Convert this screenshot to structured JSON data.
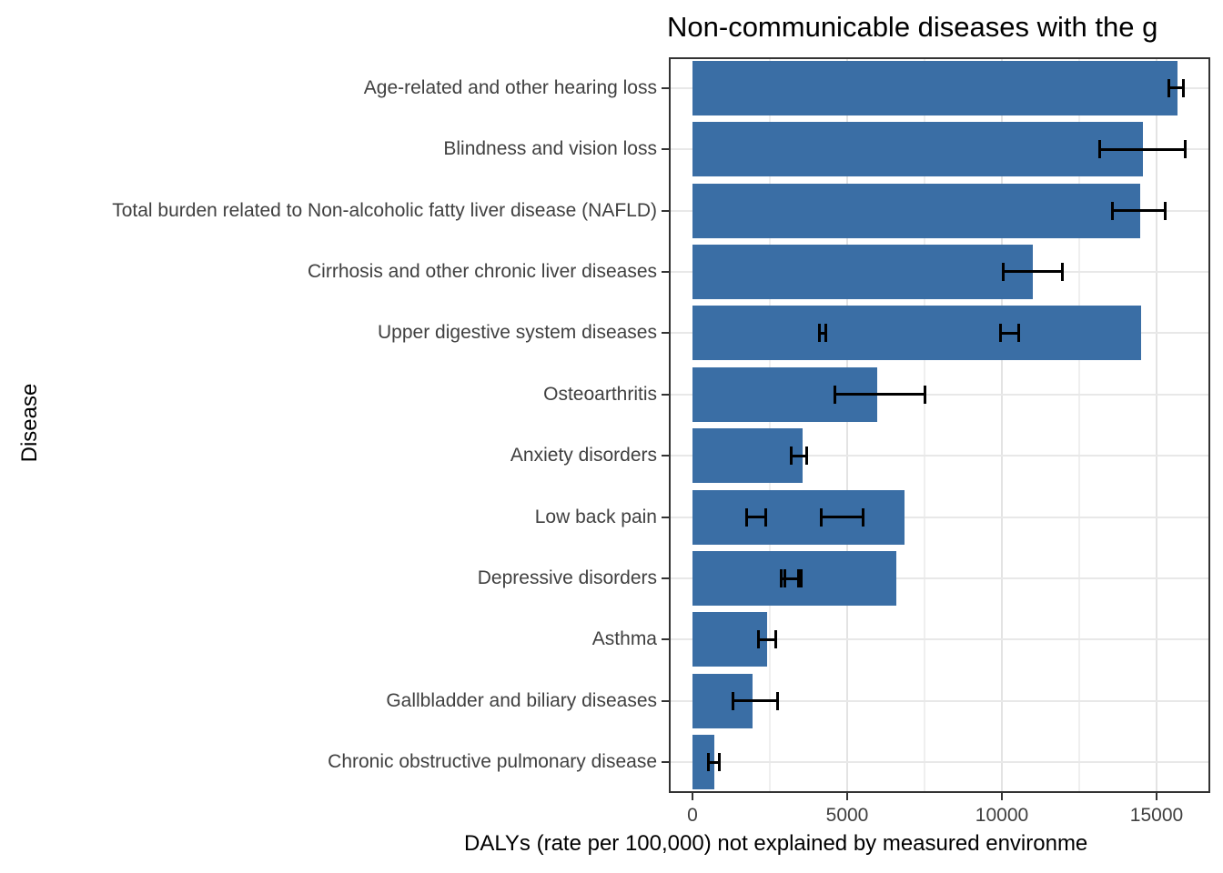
{
  "chart_data": {
    "type": "bar",
    "orientation": "horizontal",
    "title": "Non-communicable diseases with the g",
    "xlabel": "DALYs (rate per 100,000) not explained by measured environme",
    "ylabel": "Disease",
    "categories": [
      "Age-related and other hearing loss",
      "Blindness and vision loss",
      "Total burden related to Non-alcoholic fatty liver disease (NAFLD)",
      "Cirrhosis and other chronic liver diseases",
      "Upper digestive system diseases",
      "Osteoarthritis",
      "Anxiety disorders",
      "Low back pain",
      "Depressive disorders",
      "Asthma",
      "Gallbladder and biliary diseases",
      "Chronic obstructive pulmonary disease"
    ],
    "values": [
      15680,
      14560,
      14460,
      11000,
      14500,
      5980,
      3570,
      6860,
      6590,
      2400,
      1950,
      700
    ],
    "error_bars": [
      [
        [
          15410,
          15880
        ]
      ],
      [
        [
          13150,
          15920
        ]
      ],
      [
        [
          13570,
          15290
        ]
      ],
      [
        [
          10040,
          11950
        ]
      ],
      [
        [
          4090,
          4300
        ],
        [
          9970,
          10550
        ]
      ],
      [
        [
          4610,
          7500
        ]
      ],
      [
        [
          3180,
          3680
        ]
      ],
      [
        [
          1740,
          2380
        ],
        [
          4150,
          5520
        ]
      ],
      [
        [
          2860,
          3500
        ],
        [
          2980,
          3440
        ]
      ],
      [
        [
          2140,
          2700
        ]
      ],
      [
        [
          1300,
          2760
        ]
      ],
      [
        [
          510,
          870
        ]
      ]
    ],
    "x_ticks": [
      0,
      5000,
      10000,
      15000
    ],
    "x_tick_labels": [
      "0",
      "5000",
      "10000",
      "15000"
    ],
    "x_minor_gridlines": [
      2500,
      7500,
      12500
    ],
    "xlim": [
      0,
      16735
    ],
    "grid": true,
    "legend": "none",
    "bar_color": "#3A6EA5",
    "error_bar_color": "#000000",
    "gridline_color": "#e3e3e3",
    "panel_border_color": "#333333",
    "axis_text_color": "#404040",
    "title_color": "#000000"
  }
}
